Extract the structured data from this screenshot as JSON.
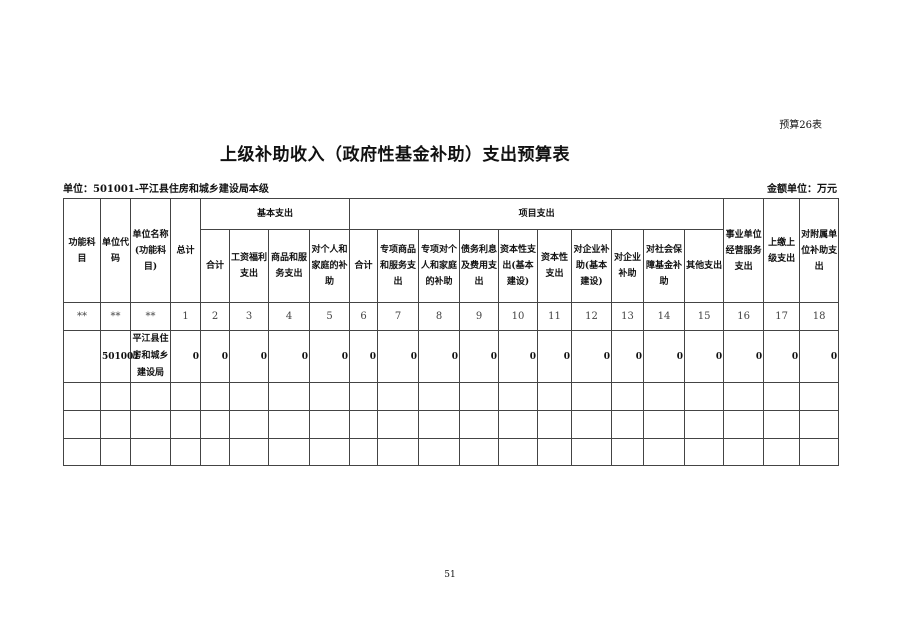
{
  "table_no": "预算26表",
  "title": "上级补助收入（政府性基金补助）支出预算表",
  "unit_label": "单位：501001-平江县住房和城乡建设局本级",
  "money_unit": "金额单位：万元",
  "headers": {
    "func": "功能科目",
    "code": "单位代码",
    "name": "单位名称(功能科目)",
    "total": "总计",
    "basic": "基本支出",
    "project": "项目支出",
    "basic_cols": [
      "合计",
      "工资福利支出",
      "商品和服务支出",
      "对个人和家庭的补助"
    ],
    "project_cols": [
      "合计",
      "专项商品和服务支出",
      "专项对个人和家庭的补助",
      "债务利息及费用支出",
      "资本性支出(基本建设)",
      "资本性支出",
      "对企业补助(基本建设)",
      "对企业补助",
      "对社会保障基金补助",
      "其他支出"
    ],
    "biz": "事业单位经营服务支出",
    "upper": "上缴上级支出",
    "affiliate": "对附属单位补助支出"
  },
  "index_row": [
    "**",
    "**",
    "**",
    "1",
    "2",
    "3",
    "4",
    "5",
    "6",
    "7",
    "8",
    "9",
    "10",
    "11",
    "12",
    "13",
    "14",
    "15",
    "16",
    "17",
    "18"
  ],
  "data_rows": [
    {
      "func": "",
      "code": "501001",
      "name": "平江县住房和城乡建设局",
      "values": [
        "0",
        "0",
        "0",
        "0",
        "0",
        "0",
        "0",
        "0",
        "0",
        "0",
        "0",
        "0",
        "0",
        "0",
        "0",
        "0",
        "0",
        "0"
      ]
    }
  ],
  "page_number": "51"
}
